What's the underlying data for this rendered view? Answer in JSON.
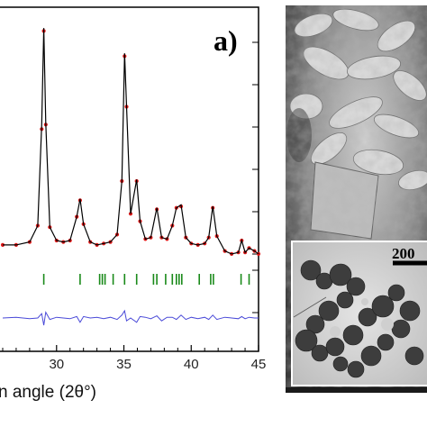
{
  "panel_label": "a)",
  "chart_data": {
    "type": "line",
    "title": "",
    "xlabel": "n angle (2θ°)",
    "ylabel": "",
    "xlim": [
      25.8,
      45
    ],
    "xticks": [
      30,
      35,
      40,
      45
    ],
    "grid": false,
    "legend": "none",
    "colors": {
      "observed": "#e01818",
      "calculated": "#000000",
      "reflections": "#1a8a1a",
      "difference": "#4a4ad8"
    },
    "series": [
      {
        "role": "observed",
        "marker": "dot",
        "x": [
          26.0,
          27.0,
          28.0,
          28.6,
          28.9,
          29.05,
          29.2,
          29.5,
          30.0,
          30.5,
          31.0,
          31.5,
          31.75,
          32.0,
          32.5,
          33.0,
          33.5,
          34.0,
          34.5,
          34.85,
          35.05,
          35.2,
          35.5,
          35.95,
          36.2,
          36.6,
          37.0,
          37.45,
          37.8,
          38.2,
          38.6,
          38.9,
          39.25,
          39.6,
          40.0,
          40.5,
          41.0,
          41.3,
          41.6,
          41.9,
          42.5,
          43.0,
          43.5,
          43.75,
          44.0,
          44.3,
          44.7,
          45.0
        ],
        "y": [
          17,
          17,
          19,
          30,
          95,
          161,
          98,
          29,
          20,
          19,
          20,
          36,
          47,
          31,
          19,
          17,
          18,
          19,
          24,
          60,
          144,
          110,
          38,
          60,
          33,
          21,
          22,
          41,
          22,
          21,
          30,
          42,
          43,
          22,
          18,
          17,
          18,
          22,
          42,
          23,
          13,
          11,
          12,
          20,
          12,
          15,
          13,
          11
        ]
      },
      {
        "role": "calculated",
        "x": [
          26.0,
          27.0,
          28.0,
          28.6,
          28.9,
          29.05,
          29.2,
          29.5,
          30.0,
          30.5,
          31.0,
          31.5,
          31.75,
          32.0,
          32.5,
          33.0,
          33.5,
          34.0,
          34.5,
          34.85,
          35.05,
          35.2,
          35.5,
          35.95,
          36.2,
          36.6,
          37.0,
          37.45,
          37.8,
          38.2,
          38.6,
          38.9,
          39.25,
          39.6,
          40.0,
          40.5,
          41.0,
          41.3,
          41.6,
          41.9,
          42.5,
          43.0,
          43.5,
          43.75,
          44.0,
          44.3,
          44.7,
          45.0
        ],
        "y": [
          17,
          17,
          19,
          30,
          98,
          163,
          99,
          29,
          20,
          19,
          20,
          36,
          48,
          31,
          19,
          17,
          18,
          19,
          24,
          60,
          146,
          110,
          38,
          61,
          33,
          21,
          22,
          42,
          22,
          21,
          30,
          42,
          44,
          22,
          18,
          17,
          18,
          22,
          43,
          23,
          13,
          11,
          12,
          20,
          12,
          15,
          13,
          11
        ]
      },
      {
        "role": "reflections",
        "x": [
          29.05,
          31.75,
          33.2,
          33.4,
          33.6,
          34.2,
          35.05,
          35.95,
          37.2,
          37.45,
          38.1,
          38.6,
          38.9,
          39.1,
          39.3,
          40.6,
          41.45,
          41.65,
          43.7,
          44.3
        ]
      },
      {
        "role": "difference",
        "x": [
          26.0,
          27.0,
          28.0,
          28.6,
          28.9,
          29.05,
          29.2,
          29.5,
          30.0,
          30.5,
          31.0,
          31.5,
          31.75,
          32.0,
          32.5,
          33.0,
          33.5,
          34.0,
          34.5,
          34.85,
          35.05,
          35.2,
          35.5,
          35.95,
          36.2,
          36.6,
          37.0,
          37.45,
          37.8,
          38.2,
          38.6,
          38.9,
          39.25,
          39.6,
          40.0,
          40.5,
          41.0,
          41.3,
          41.6,
          41.9,
          42.5,
          43.0,
          43.5,
          43.75,
          44.0,
          44.3,
          44.7,
          45.0
        ],
        "y": [
          0,
          0.5,
          -0.5,
          0,
          3,
          -5,
          4,
          -1,
          0.5,
          0,
          -0.5,
          1,
          -3,
          1,
          0,
          0.5,
          -0.5,
          0.5,
          -1,
          2,
          5,
          -2,
          0,
          -3,
          1,
          0.5,
          -0.5,
          1.5,
          -2,
          0.5,
          0.5,
          -1,
          2,
          -1,
          0.5,
          -0.5,
          0.5,
          -1,
          2,
          -1,
          0.5,
          0,
          -0.5,
          1,
          -0.5,
          0.5,
          0,
          0
        ]
      }
    ]
  },
  "micrograph": {
    "scale_label": "200"
  }
}
